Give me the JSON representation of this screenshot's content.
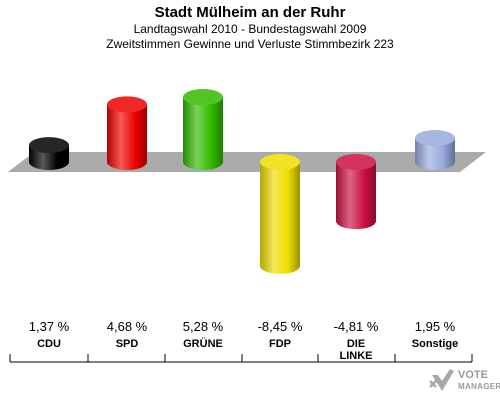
{
  "header": {
    "title": "Stadt Mülheim an der Ruhr",
    "subtitle1": "Landtagswahl 2010 - Bundestagswahl 2009",
    "subtitle2": "Zweitstimmen Gewinne und Verluste Stimmbezirk 223"
  },
  "chart_data": {
    "type": "bar",
    "categories": [
      "CDU",
      "SPD",
      "GRÜNE",
      "FDP",
      "DIE LINKE",
      "Sonstige"
    ],
    "category_lines": [
      [
        "CDU"
      ],
      [
        "SPD"
      ],
      [
        "GRÜNE"
      ],
      [
        "FDP"
      ],
      [
        "DIE",
        "LINKE"
      ],
      [
        "Sonstige"
      ]
    ],
    "values": [
      1.37,
      4.68,
      5.28,
      -8.45,
      -4.81,
      1.95
    ],
    "value_labels": [
      "1,37 %",
      "4,68 %",
      "5,28 %",
      "-8,45 %",
      "-4,81 %",
      "1,95 %"
    ],
    "colors": [
      "#000000",
      "#ee0000",
      "#33bb00",
      "#eedd00",
      "#cc1144",
      "#99aadd"
    ],
    "ylim": [
      -9,
      6
    ],
    "baseline": 0,
    "grid": false,
    "legend": "none"
  },
  "logo": {
    "line1": "VOTE",
    "line2": "MANAGER",
    "icon": "checkmark-x-logo-icon"
  }
}
